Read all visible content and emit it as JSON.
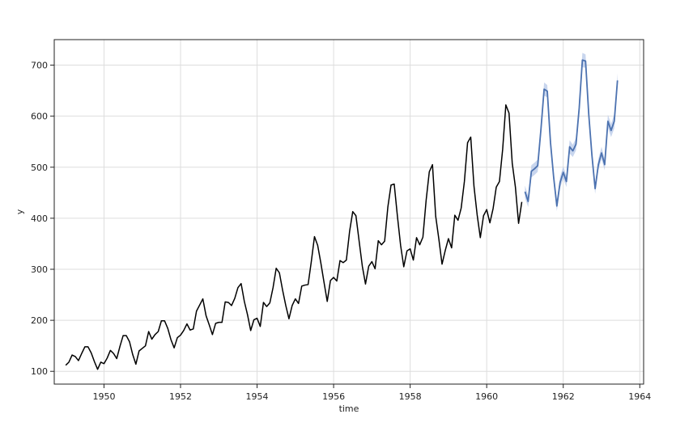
{
  "chart_data": {
    "type": "line",
    "title": "",
    "xlabel": "time",
    "ylabel": "y",
    "xlim": [
      1948.7,
      1964.1
    ],
    "ylim": [
      75,
      750
    ],
    "xticks": [
      1950,
      1952,
      1954,
      1956,
      1958,
      1960,
      1962,
      1964
    ],
    "yticks": [
      100,
      200,
      300,
      400,
      500,
      600,
      700
    ],
    "grid": true,
    "legend": "none",
    "colors": {
      "observed": "#000000",
      "forecast": "#4c72b0",
      "forecast_band": "#b7c8e8"
    },
    "series": [
      {
        "role": "observed",
        "x": [
          1949.0,
          1949.083,
          1949.167,
          1949.25,
          1949.333,
          1949.417,
          1949.5,
          1949.583,
          1949.667,
          1949.75,
          1949.833,
          1949.917,
          1950.0,
          1950.083,
          1950.167,
          1950.25,
          1950.333,
          1950.417,
          1950.5,
          1950.583,
          1950.667,
          1950.75,
          1950.833,
          1950.917,
          1951.0,
          1951.083,
          1951.167,
          1951.25,
          1951.333,
          1951.417,
          1951.5,
          1951.583,
          1951.667,
          1951.75,
          1951.833,
          1951.917,
          1952.0,
          1952.083,
          1952.167,
          1952.25,
          1952.333,
          1952.417,
          1952.5,
          1952.583,
          1952.667,
          1952.75,
          1952.833,
          1952.917,
          1953.0,
          1953.083,
          1953.167,
          1953.25,
          1953.333,
          1953.417,
          1953.5,
          1953.583,
          1953.667,
          1953.75,
          1953.833,
          1953.917,
          1954.0,
          1954.083,
          1954.167,
          1954.25,
          1954.333,
          1954.417,
          1954.5,
          1954.583,
          1954.667,
          1954.75,
          1954.833,
          1954.917,
          1955.0,
          1955.083,
          1955.167,
          1955.25,
          1955.333,
          1955.417,
          1955.5,
          1955.583,
          1955.667,
          1955.75,
          1955.833,
          1955.917,
          1956.0,
          1956.083,
          1956.167,
          1956.25,
          1956.333,
          1956.417,
          1956.5,
          1956.583,
          1956.667,
          1956.75,
          1956.833,
          1956.917,
          1957.0,
          1957.083,
          1957.167,
          1957.25,
          1957.333,
          1957.417,
          1957.5,
          1957.583,
          1957.667,
          1957.75,
          1957.833,
          1957.917,
          1958.0,
          1958.083,
          1958.167,
          1958.25,
          1958.333,
          1958.417,
          1958.5,
          1958.583,
          1958.667,
          1958.75,
          1958.833,
          1958.917,
          1959.0,
          1959.083,
          1959.167,
          1959.25,
          1959.333,
          1959.417,
          1959.5,
          1959.583,
          1959.667,
          1959.75,
          1959.833,
          1959.917,
          1960.0,
          1960.083,
          1960.167,
          1960.25,
          1960.333,
          1960.417,
          1960.5,
          1960.583,
          1960.667,
          1960.75,
          1960.833,
          1960.917
        ],
        "y": [
          112,
          118,
          132,
          129,
          121,
          135,
          148,
          148,
          136,
          119,
          104,
          118,
          115,
          126,
          141,
          135,
          125,
          149,
          170,
          170,
          158,
          133,
          114,
          140,
          145,
          150,
          178,
          163,
          172,
          178,
          199,
          199,
          184,
          162,
          146,
          166,
          171,
          180,
          193,
          181,
          183,
          218,
          230,
          242,
          209,
          191,
          172,
          194,
          196,
          196,
          236,
          235,
          229,
          243,
          264,
          272,
          237,
          211,
          180,
          201,
          204,
          188,
          235,
          227,
          234,
          264,
          302,
          293,
          259,
          229,
          203,
          229,
          242,
          233,
          267,
          269,
          270,
          315,
          364,
          347,
          312,
          274,
          237,
          278,
          284,
          277,
          317,
          313,
          318,
          374,
          413,
          405,
          355,
          306,
          271,
          306,
          315,
          301,
          356,
          348,
          355,
          422,
          465,
          467,
          404,
          347,
          305,
          336,
          340,
          318,
          362,
          348,
          363,
          435,
          491,
          505,
          404,
          359,
          310,
          337,
          360,
          342,
          406,
          396,
          420,
          472,
          548,
          559,
          463,
          407,
          362,
          405,
          417,
          391,
          419,
          461,
          472,
          535,
          622,
          606,
          508,
          461,
          390,
          432
        ]
      },
      {
        "role": "forecast",
        "x": [
          1961.0,
          1961.083,
          1961.167,
          1961.25,
          1961.333,
          1961.417,
          1961.5,
          1961.583,
          1961.667,
          1961.75,
          1961.833,
          1961.917,
          1962.0,
          1962.083,
          1962.167,
          1962.25,
          1962.333,
          1962.417,
          1962.5,
          1962.583,
          1962.667,
          1962.75,
          1962.833,
          1962.917,
          1963.0,
          1963.083,
          1963.167,
          1963.25,
          1963.333,
          1963.417
        ],
        "y": [
          452,
          433,
          492,
          497,
          503,
          574,
          653,
          649,
          548,
          480,
          424,
          470,
          490,
          472,
          540,
          532,
          545,
          616,
          710,
          708,
          603,
          523,
          458,
          505,
          528,
          505,
          590,
          572,
          590,
          670
        ],
        "lower": [
          440,
          422,
          480,
          485,
          491,
          562,
          640,
          637,
          537,
          469,
          414,
          459,
          478,
          461,
          527,
          520,
          533,
          603,
          696,
          695,
          591,
          512,
          448,
          494,
          516,
          494,
          577,
          559,
          576,
          656
        ],
        "upper": [
          464,
          444,
          504,
          509,
          515,
          586,
          666,
          661,
          559,
          491,
          434,
          481,
          502,
          483,
          553,
          544,
          557,
          629,
          724,
          721,
          615,
          534,
          468,
          516,
          540,
          516,
          603,
          585,
          604,
          684
        ]
      }
    ]
  }
}
